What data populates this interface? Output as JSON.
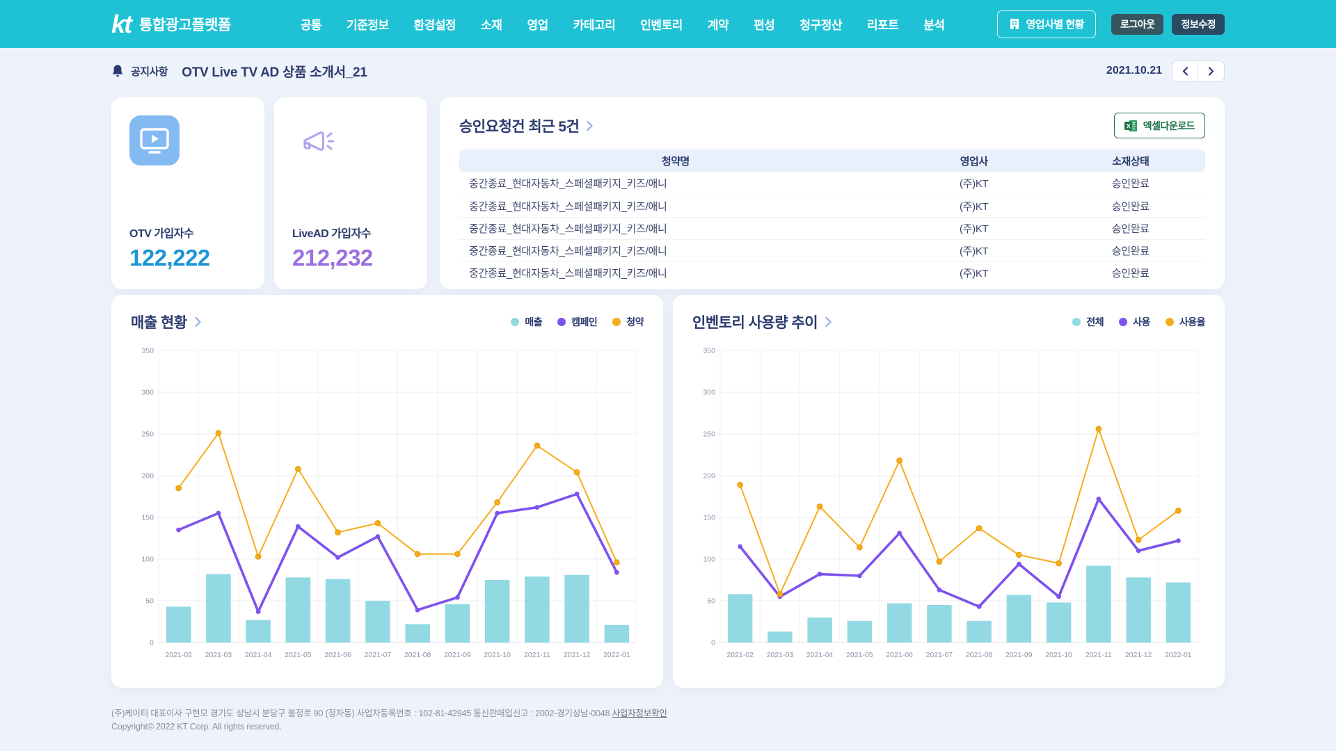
{
  "theme": {
    "header_teal": "#1fc2d5",
    "navy": "#2b3b6e",
    "excel_green": "#1e7145"
  },
  "header": {
    "logo_text": "kt",
    "brand": "통합광고플랫폼",
    "nav": [
      "공통",
      "기준정보",
      "환경설정",
      "소재",
      "영업",
      "카테고리",
      "인벤토리",
      "계약",
      "편성",
      "청구정산",
      "리포트",
      "분석"
    ],
    "sales_status_button": "영업사별 현황",
    "logout_button": "로그아웃",
    "edit_info_button": "정보수정"
  },
  "notice": {
    "label": "공지사항",
    "title": "OTV Live TV AD 상품 소개서_21",
    "date": "2021.10.21"
  },
  "stat_cards": [
    {
      "label": "OTV 가입자수",
      "value": "122,222",
      "color": "#1a96d6"
    },
    {
      "label": "LiveAD 가입자수",
      "value": "212,232",
      "color": "#9b6fe0"
    }
  ],
  "approval": {
    "title": "승인요청건 최근 5건",
    "excel_button": "엑셀다운로드",
    "columns": [
      "청약명",
      "영업사",
      "소재상태"
    ],
    "rows": [
      [
        "중간종료_현대자동차_스페셜패키지_키즈/애니",
        "(주)KT",
        "승인완료"
      ],
      [
        "중간종료_현대자동차_스페셜패키지_키즈/애니",
        "(주)KT",
        "승인완료"
      ],
      [
        "중간종료_현대자동차_스페셜패키지_키즈/애니",
        "(주)KT",
        "승인완료"
      ],
      [
        "중간종료_현대자동차_스페셜패키지_키즈/애니",
        "(주)KT",
        "승인완료"
      ],
      [
        "중간종료_현대자동차_스페셜패키지_키즈/애니",
        "(주)KT",
        "승인완료"
      ]
    ]
  },
  "chart_data": [
    {
      "type": "bar+line",
      "title": "매출 현황",
      "categories": [
        "2021-02",
        "2021-03",
        "2021-04",
        "2021-05",
        "2021-06",
        "2021-07",
        "2021-08",
        "2021-09",
        "2021-10",
        "2021-11",
        "2021-12",
        "2022-01"
      ],
      "series": [
        {
          "name": "매출",
          "type": "bar",
          "color": "#92d9e3",
          "values": [
            43,
            82,
            27,
            78,
            76,
            50,
            22,
            46,
            75,
            79,
            81,
            21
          ]
        },
        {
          "name": "캠페인",
          "type": "line",
          "color": "#7d52ee",
          "values": [
            135,
            155,
            37,
            139,
            102,
            127,
            39,
            54,
            155,
            162,
            178,
            84
          ]
        },
        {
          "name": "청약",
          "type": "line",
          "color": "#f5ad1d",
          "values": [
            185,
            251,
            103,
            208,
            132,
            143,
            106,
            106,
            168,
            236,
            204,
            96
          ]
        }
      ],
      "ylim": [
        0,
        350
      ],
      "ytick": 50,
      "grid": true,
      "legend_position": "top-right"
    },
    {
      "type": "bar+line",
      "title": "인벤토리 사용량 추이",
      "categories": [
        "2021-02",
        "2021-03",
        "2021-04",
        "2021-05",
        "2021-06",
        "2021-07",
        "2021-08",
        "2021-09",
        "2021-10",
        "2021-11",
        "2021-12",
        "2022-01"
      ],
      "series": [
        {
          "name": "전체",
          "type": "bar",
          "color": "#92d9e3",
          "values": [
            58,
            13,
            30,
            26,
            47,
            45,
            26,
            57,
            48,
            92,
            78,
            72
          ]
        },
        {
          "name": "사용",
          "type": "line",
          "color": "#7d52ee",
          "values": [
            115,
            55,
            82,
            80,
            131,
            63,
            43,
            94,
            55,
            172,
            110,
            122
          ]
        },
        {
          "name": "사용율",
          "type": "line",
          "color": "#f5ad1d",
          "values": [
            189,
            58,
            163,
            114,
            218,
            97,
            137,
            105,
            95,
            256,
            123,
            158
          ]
        }
      ],
      "ylim": [
        0,
        350
      ],
      "ytick": 50,
      "grid": true,
      "legend_position": "top-right"
    }
  ],
  "footer": {
    "company_info": "(주)케이티 대표이사 구현모 경기도 성남시 분당구 불정로 90 (정자동) 사업자등록번호 : 102-81-42945 통신판매업신고 : 2002-경기성남-0048",
    "business_link": "사업자정보확인",
    "copyright": "Copyright© 2022 KT Corp. All rights reserved."
  }
}
